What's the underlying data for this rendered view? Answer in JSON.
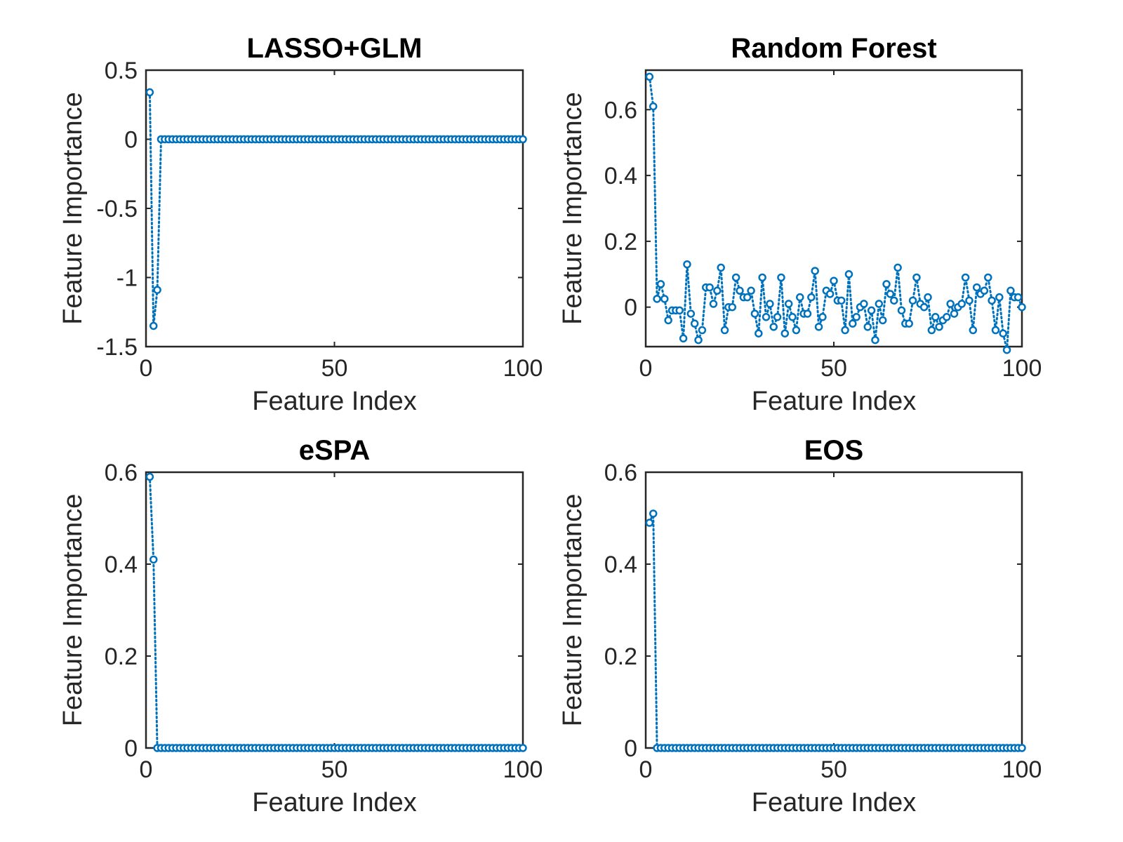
{
  "figure": {
    "background": "#ffffff",
    "line_color": "#0072BD",
    "axes_color": "#262626"
  },
  "chart_data": [
    {
      "type": "line",
      "title": "LASSO+GLM",
      "xlabel": "Feature Index",
      "ylabel": "Feature Importance",
      "xlim": [
        0,
        100
      ],
      "ylim": [
        -1.5,
        0.5
      ],
      "xticks": [
        "0",
        "50",
        "100"
      ],
      "yticks": [
        "-1.5",
        "-1",
        "-0.5",
        "0",
        "0.5"
      ],
      "grid": false,
      "marker": "circle",
      "linestyle": "dotted",
      "x": [
        1,
        2,
        3,
        4,
        5,
        6,
        7,
        8,
        9,
        10,
        11,
        12,
        13,
        14,
        15,
        16,
        17,
        18,
        19,
        20,
        21,
        22,
        23,
        24,
        25,
        26,
        27,
        28,
        29,
        30,
        31,
        32,
        33,
        34,
        35,
        36,
        37,
        38,
        39,
        40,
        41,
        42,
        43,
        44,
        45,
        46,
        47,
        48,
        49,
        50,
        51,
        52,
        53,
        54,
        55,
        56,
        57,
        58,
        59,
        60,
        61,
        62,
        63,
        64,
        65,
        66,
        67,
        68,
        69,
        70,
        71,
        72,
        73,
        74,
        75,
        76,
        77,
        78,
        79,
        80,
        81,
        82,
        83,
        84,
        85,
        86,
        87,
        88,
        89,
        90,
        91,
        92,
        93,
        94,
        95,
        96,
        97,
        98,
        99,
        100
      ],
      "values": [
        0.34,
        -1.35,
        -1.09,
        0,
        0,
        0,
        0,
        0,
        0,
        0,
        0,
        0,
        0,
        0,
        0,
        0,
        0,
        0,
        0,
        0,
        0,
        0,
        0,
        0,
        0,
        0,
        0,
        0,
        0,
        0,
        0,
        0,
        0,
        0,
        0,
        0,
        0,
        0,
        0,
        0,
        0,
        0,
        0,
        0,
        0,
        0,
        0,
        0,
        0,
        0,
        0,
        0,
        0,
        0,
        0,
        0,
        0,
        0,
        0,
        0,
        0,
        0,
        0,
        0,
        0,
        0,
        0,
        0,
        0,
        0,
        0,
        0,
        0,
        0,
        0,
        0,
        0,
        0,
        0,
        0,
        0,
        0,
        0,
        0,
        0,
        0,
        0,
        0,
        0,
        0,
        0,
        0,
        0,
        0,
        0,
        0,
        0,
        0,
        0,
        0
      ]
    },
    {
      "type": "line",
      "title": "Random Forest",
      "xlabel": "Feature Index",
      "ylabel": "Feature Importance",
      "xlim": [
        0,
        100
      ],
      "ylim": [
        -0.12,
        0.72
      ],
      "xticks": [
        "0",
        "50",
        "100"
      ],
      "yticks": [
        "0",
        "0.2",
        "0.4",
        "0.6"
      ],
      "grid": false,
      "marker": "circle",
      "linestyle": "dotted",
      "x": [
        1,
        2,
        3,
        4,
        5,
        6,
        7,
        8,
        9,
        10,
        11,
        12,
        13,
        14,
        15,
        16,
        17,
        18,
        19,
        20,
        21,
        22,
        23,
        24,
        25,
        26,
        27,
        28,
        29,
        30,
        31,
        32,
        33,
        34,
        35,
        36,
        37,
        38,
        39,
        40,
        41,
        42,
        43,
        44,
        45,
        46,
        47,
        48,
        49,
        50,
        51,
        52,
        53,
        54,
        55,
        56,
        57,
        58,
        59,
        60,
        61,
        62,
        63,
        64,
        65,
        66,
        67,
        68,
        69,
        70,
        71,
        72,
        73,
        74,
        75,
        76,
        77,
        78,
        79,
        80,
        81,
        82,
        83,
        84,
        85,
        86,
        87,
        88,
        89,
        90,
        91,
        92,
        93,
        94,
        95,
        96,
        97,
        98,
        99,
        100
      ],
      "values": [
        0.7,
        0.61,
        0.025,
        0.07,
        0.025,
        -0.04,
        -0.01,
        -0.01,
        -0.01,
        -0.095,
        0.13,
        -0.02,
        -0.05,
        -0.1,
        -0.07,
        0.06,
        0.06,
        0.01,
        0.05,
        0.12,
        -0.07,
        0,
        0,
        0.09,
        0.05,
        0.03,
        0.03,
        0.05,
        -0.02,
        -0.08,
        0.09,
        -0.03,
        0.01,
        -0.06,
        -0.03,
        0.09,
        -0.08,
        0.01,
        -0.03,
        -0.07,
        0.03,
        -0.02,
        -0.02,
        0.03,
        0.11,
        -0.06,
        -0.03,
        0.05,
        0.04,
        0.08,
        0.02,
        0.02,
        -0.07,
        0.1,
        -0.05,
        -0.03,
        0,
        0.01,
        -0.06,
        -0.01,
        -0.1,
        0.01,
        -0.04,
        0.07,
        0.04,
        0.02,
        0.12,
        -0.01,
        -0.05,
        -0.05,
        0.02,
        0.09,
        0.01,
        0,
        0.03,
        -0.07,
        -0.03,
        -0.06,
        -0.04,
        -0.03,
        0.01,
        -0.02,
        0,
        0.01,
        0.09,
        0.02,
        -0.07,
        0.06,
        0.04,
        0.05,
        0.09,
        0.02,
        -0.07,
        0.03,
        -0.08,
        -0.13,
        0.05,
        0.03,
        0.03,
        0
      ]
    },
    {
      "type": "line",
      "title": "eSPA",
      "xlabel": "Feature Index",
      "ylabel": "Feature Importance",
      "xlim": [
        0,
        100
      ],
      "ylim": [
        0,
        0.6
      ],
      "xticks": [
        "0",
        "50",
        "100"
      ],
      "yticks": [
        "0",
        "0.2",
        "0.4",
        "0.6"
      ],
      "grid": false,
      "marker": "circle",
      "linestyle": "dotted",
      "x": [
        1,
        2,
        3,
        4,
        5,
        6,
        7,
        8,
        9,
        10,
        11,
        12,
        13,
        14,
        15,
        16,
        17,
        18,
        19,
        20,
        21,
        22,
        23,
        24,
        25,
        26,
        27,
        28,
        29,
        30,
        31,
        32,
        33,
        34,
        35,
        36,
        37,
        38,
        39,
        40,
        41,
        42,
        43,
        44,
        45,
        46,
        47,
        48,
        49,
        50,
        51,
        52,
        53,
        54,
        55,
        56,
        57,
        58,
        59,
        60,
        61,
        62,
        63,
        64,
        65,
        66,
        67,
        68,
        69,
        70,
        71,
        72,
        73,
        74,
        75,
        76,
        77,
        78,
        79,
        80,
        81,
        82,
        83,
        84,
        85,
        86,
        87,
        88,
        89,
        90,
        91,
        92,
        93,
        94,
        95,
        96,
        97,
        98,
        99,
        100
      ],
      "values": [
        0.59,
        0.41,
        0,
        0,
        0,
        0,
        0,
        0,
        0,
        0,
        0,
        0,
        0,
        0,
        0,
        0,
        0,
        0,
        0,
        0,
        0,
        0,
        0,
        0,
        0,
        0,
        0,
        0,
        0,
        0,
        0,
        0,
        0,
        0,
        0,
        0,
        0,
        0,
        0,
        0,
        0,
        0,
        0,
        0,
        0,
        0,
        0,
        0,
        0,
        0,
        0,
        0,
        0,
        0,
        0,
        0,
        0,
        0,
        0,
        0,
        0,
        0,
        0,
        0,
        0,
        0,
        0,
        0,
        0,
        0,
        0,
        0,
        0,
        0,
        0,
        0,
        0,
        0,
        0,
        0,
        0,
        0,
        0,
        0,
        0,
        0,
        0,
        0,
        0,
        0,
        0,
        0,
        0,
        0,
        0,
        0,
        0,
        0,
        0,
        0
      ]
    },
    {
      "type": "line",
      "title": "EOS",
      "xlabel": "Feature Index",
      "ylabel": "Feature Importance",
      "xlim": [
        0,
        100
      ],
      "ylim": [
        0,
        0.6
      ],
      "xticks": [
        "0",
        "50",
        "100"
      ],
      "yticks": [
        "0",
        "0.2",
        "0.4",
        "0.6"
      ],
      "grid": false,
      "marker": "circle",
      "linestyle": "dotted",
      "x": [
        1,
        2,
        3,
        4,
        5,
        6,
        7,
        8,
        9,
        10,
        11,
        12,
        13,
        14,
        15,
        16,
        17,
        18,
        19,
        20,
        21,
        22,
        23,
        24,
        25,
        26,
        27,
        28,
        29,
        30,
        31,
        32,
        33,
        34,
        35,
        36,
        37,
        38,
        39,
        40,
        41,
        42,
        43,
        44,
        45,
        46,
        47,
        48,
        49,
        50,
        51,
        52,
        53,
        54,
        55,
        56,
        57,
        58,
        59,
        60,
        61,
        62,
        63,
        64,
        65,
        66,
        67,
        68,
        69,
        70,
        71,
        72,
        73,
        74,
        75,
        76,
        77,
        78,
        79,
        80,
        81,
        82,
        83,
        84,
        85,
        86,
        87,
        88,
        89,
        90,
        91,
        92,
        93,
        94,
        95,
        96,
        97,
        98,
        99,
        100
      ],
      "values": [
        0.49,
        0.51,
        0,
        0,
        0,
        0,
        0,
        0,
        0,
        0,
        0,
        0,
        0,
        0,
        0,
        0,
        0,
        0,
        0,
        0,
        0,
        0,
        0,
        0,
        0,
        0,
        0,
        0,
        0,
        0,
        0,
        0,
        0,
        0,
        0,
        0,
        0,
        0,
        0,
        0,
        0,
        0,
        0,
        0,
        0,
        0,
        0,
        0,
        0,
        0,
        0,
        0,
        0,
        0,
        0,
        0,
        0,
        0,
        0,
        0,
        0,
        0,
        0,
        0,
        0,
        0,
        0,
        0,
        0,
        0,
        0,
        0,
        0,
        0,
        0,
        0,
        0,
        0,
        0,
        0,
        0,
        0,
        0,
        0,
        0,
        0,
        0,
        0,
        0,
        0,
        0,
        0,
        0,
        0,
        0,
        0,
        0,
        0,
        0,
        0
      ]
    }
  ]
}
